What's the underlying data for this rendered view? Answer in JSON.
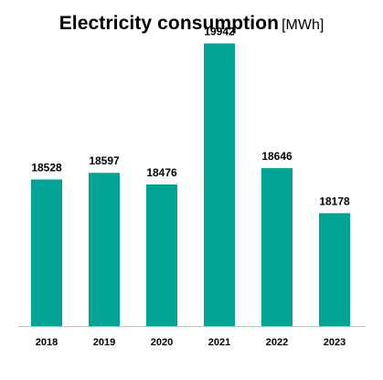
{
  "chart_data": {
    "type": "bar",
    "title": "Electricity consumption",
    "unit": "[MWh]",
    "categories": [
      "2018",
      "2019",
      "2020",
      "2021",
      "2022",
      "2023"
    ],
    "values": [
      18528,
      18597,
      18476,
      19942,
      18646,
      18178
    ],
    "bar_color": "#00A396",
    "axis_color": "#BFBFBF",
    "grid": false,
    "legend": "none"
  }
}
